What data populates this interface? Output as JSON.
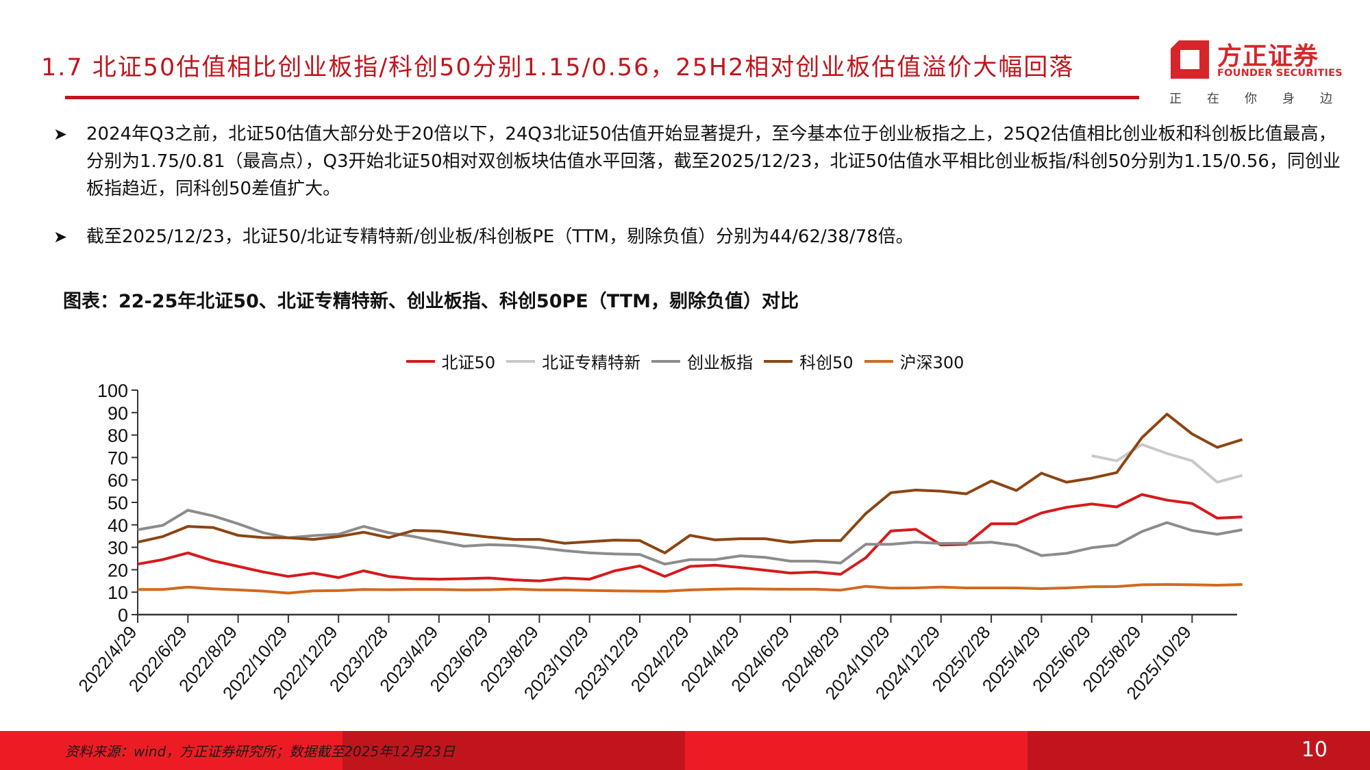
{
  "header": {
    "title": "1.7 北证50估值相比创业板指/科创50分别1.15/0.56，25H2相对创业板估值溢价大幅回落",
    "logo": {
      "name_cn": "方正证券",
      "name_en": "FOUNDER SECURITIES",
      "slogan": [
        "正",
        "在",
        "你",
        "身",
        "边"
      ]
    }
  },
  "colors": {
    "brand_red": "#c0151d",
    "footer_bright": "#ed1c24",
    "footer_dark": "#c1151d"
  },
  "bullets": [
    {
      "icon": "arrow-bullet-icon",
      "text": "2024年Q3之前，北证50估值大部分处于20倍以下，24Q3北证50估值开始显著提升，至今基本位于创业板指之上，25Q2估值相比创业板和科创板比值最高，分别为1.75/0.81（最高点），Q3开始北证50相对双创板块估值水平回落，截至2025/12/23，北证50估值水平相比创业板指/科创50分别为1.15/0.56，同创业板指趋近，同科创50差值扩大。"
    },
    {
      "icon": "arrow-bullet-icon",
      "text": "截至2025/12/23，北证50/北证专精特新/创业板/科创板PE（TTM，剔除负值）分别为44/62/38/78倍。"
    }
  ],
  "chart_caption": "图表：22-25年北证50、北证专精特新、创业板指、科创50PE（TTM，剔除负值）对比",
  "chart_data": {
    "type": "line",
    "title": "图表：22-25年北证50、北证专精特新、创业板指、科创50PE（TTM，剔除负值）对比",
    "xlabel": "",
    "ylabel": "",
    "ylim": [
      0,
      100
    ],
    "yticks": [
      0,
      10,
      20,
      30,
      40,
      50,
      60,
      70,
      80,
      90,
      100
    ],
    "grid": false,
    "legend_position": "top",
    "x_tick_labels": [
      "2022/4/29",
      "2022/6/29",
      "2022/8/29",
      "2022/10/29",
      "2022/12/29",
      "2023/2/28",
      "2023/4/29",
      "2023/6/29",
      "2023/8/29",
      "2023/10/29",
      "2023/12/29",
      "2024/2/29",
      "2024/4/29",
      "2024/6/29",
      "2024/8/29",
      "2024/10/29",
      "2024/12/29",
      "2025/2/28",
      "2025/4/29",
      "2025/6/29",
      "2025/8/29",
      "2025/10/29"
    ],
    "x": [
      "2022/4/29",
      "2022/5/29",
      "2022/6/29",
      "2022/7/29",
      "2022/8/29",
      "2022/9/29",
      "2022/10/29",
      "2022/11/29",
      "2022/12/29",
      "2023/1/29",
      "2023/2/28",
      "2023/3/29",
      "2023/4/29",
      "2023/5/29",
      "2023/6/29",
      "2023/7/29",
      "2023/8/29",
      "2023/9/29",
      "2023/10/29",
      "2023/11/29",
      "2023/12/29",
      "2024/1/29",
      "2024/2/29",
      "2024/3/29",
      "2024/4/29",
      "2024/5/29",
      "2024/6/29",
      "2024/7/29",
      "2024/8/29",
      "2024/9/29",
      "2024/10/29",
      "2024/11/29",
      "2024/12/29",
      "2025/1/29",
      "2025/2/28",
      "2025/3/29",
      "2025/4/29",
      "2025/5/29",
      "2025/6/29",
      "2025/7/29",
      "2025/8/29",
      "2025/9/29",
      "2025/10/29",
      "2025/11/29",
      "2025/12/23"
    ],
    "series": [
      {
        "name": "北证50",
        "color": "#d7191c",
        "values": [
          22.5,
          24.5,
          27.5,
          24,
          21.5,
          19,
          17,
          18.5,
          16.5,
          19.5,
          17,
          16,
          15.8,
          16,
          16.3,
          15.5,
          15,
          16.3,
          15.8,
          19.5,
          21.7,
          17,
          21.5,
          22,
          21,
          19.8,
          18.5,
          19,
          18,
          25.3,
          37.3,
          38,
          31,
          31.3,
          40.5,
          40.5,
          45.3,
          47.8,
          49.3,
          48,
          53.5,
          51,
          49.5,
          43,
          43.5
        ]
      },
      {
        "name": "北证专精特新",
        "color": "#c8c8c8",
        "values": [
          null,
          null,
          null,
          null,
          null,
          null,
          null,
          null,
          null,
          null,
          null,
          null,
          null,
          null,
          null,
          null,
          null,
          null,
          null,
          null,
          null,
          null,
          null,
          null,
          null,
          null,
          null,
          null,
          null,
          null,
          null,
          null,
          null,
          null,
          null,
          null,
          null,
          null,
          70.8,
          68.5,
          75.8,
          71.8,
          68.5,
          59,
          62
        ]
      },
      {
        "name": "创业板指",
        "color": "#8c8c8c",
        "values": [
          37.8,
          39.8,
          46.5,
          44,
          40.5,
          36.5,
          34.2,
          35.2,
          35.8,
          39.3,
          36.5,
          34.8,
          32.5,
          30.5,
          31.2,
          30.8,
          29.8,
          28.5,
          27.5,
          27,
          26.8,
          22.5,
          24.5,
          24.5,
          26.2,
          25.5,
          23.8,
          23.8,
          23,
          31.3,
          31.3,
          32.3,
          31.7,
          31.8,
          32.3,
          30.8,
          26.3,
          27.3,
          29.8,
          31,
          37,
          41,
          37.5,
          35.8,
          37.8
        ]
      },
      {
        "name": "科创50",
        "color": "#8b4513",
        "values": [
          32.3,
          34.8,
          39.3,
          38.8,
          35.3,
          34.3,
          34.2,
          33.5,
          34.8,
          36.7,
          34.3,
          37.5,
          37.2,
          35.8,
          34.5,
          33.5,
          33.5,
          31.8,
          32.5,
          33.2,
          33,
          27.5,
          35.3,
          33.3,
          33.8,
          33.8,
          32.2,
          33,
          33,
          45,
          54.3,
          55.5,
          55,
          53.8,
          59.5,
          55.3,
          63,
          59,
          60.8,
          63.3,
          78.8,
          89.3,
          80.5,
          74.5,
          78
        ]
      },
      {
        "name": "沪深300",
        "color": "#d2691e",
        "values": [
          11.2,
          11.2,
          12.3,
          11.5,
          11,
          10.5,
          9.6,
          10.6,
          10.7,
          11.2,
          11.1,
          11.2,
          11.2,
          11,
          11.1,
          11.4,
          11,
          11,
          10.8,
          10.6,
          10.5,
          10.4,
          11,
          11.3,
          11.5,
          11.4,
          11.3,
          11.3,
          10.9,
          12.6,
          11.8,
          11.9,
          12.3,
          11.9,
          11.9,
          11.9,
          11.6,
          11.9,
          12.4,
          12.5,
          13.3,
          13.4,
          13.3,
          13.1,
          13.4
        ]
      }
    ]
  },
  "footer": {
    "source": "资料来源：wind，方正证券研究所；数据截至2025年12月23日",
    "page_number": "10"
  }
}
